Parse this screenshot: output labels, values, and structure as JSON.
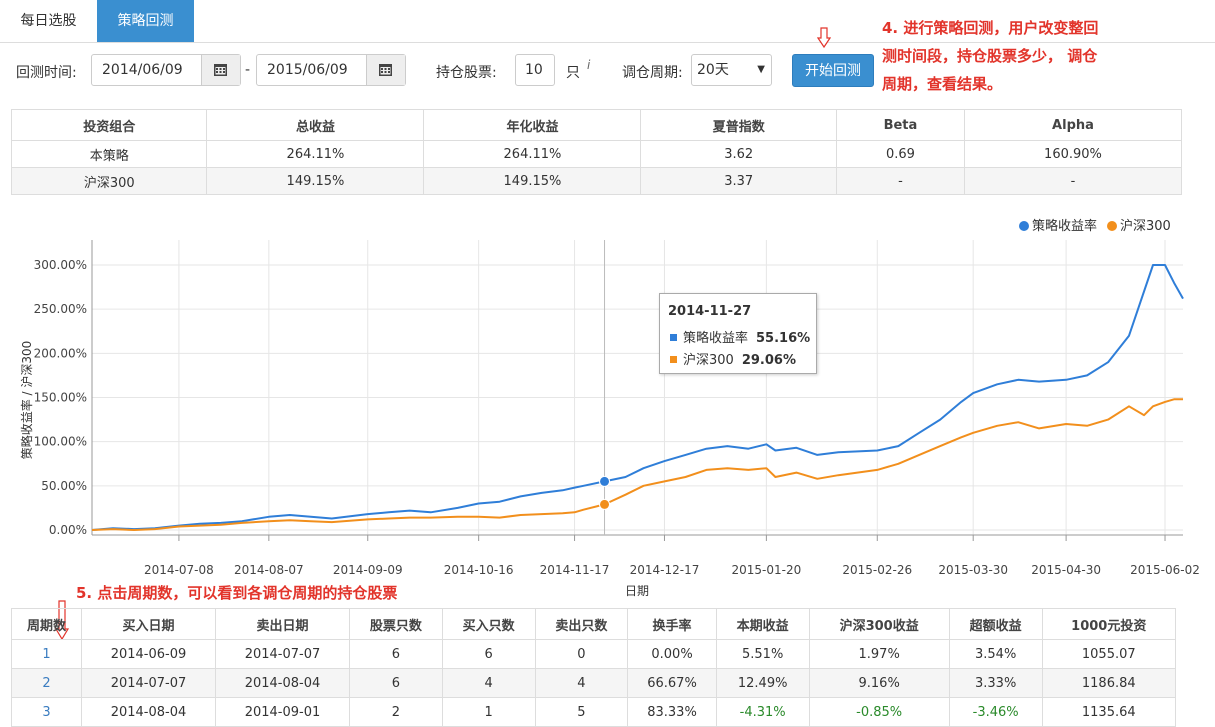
{
  "tabs": [
    {
      "label": "每日选股"
    },
    {
      "label": "策略回测"
    }
  ],
  "controls": {
    "period_label": "回测时间:",
    "start_date": "2014/06/09",
    "date_sep": "-",
    "end_date": "2015/06/09",
    "hold_label": "持仓股票:",
    "hold_count": "10",
    "hold_unit": "只",
    "info_mark": "i",
    "rebalance_label": "调仓周期:",
    "rebalance_value": "20天",
    "start_button": "开始回测"
  },
  "annotations": {
    "step4": [
      "4. 进行策略回测，用户改变整回",
      "测时间段，持仓股票多少， 调仓",
      "周期，查看结果。"
    ],
    "step5": "5. 点击周期数，可以看到各调仓周期的持仓股票"
  },
  "stats_table": {
    "headers": [
      "投资组合",
      "总收益",
      "年化收益",
      "夏普指数",
      "Beta",
      "Alpha"
    ],
    "rows": [
      [
        "本策略",
        "264.11%",
        "264.11%",
        "3.62",
        "0.69",
        "160.90%"
      ],
      [
        "沪深300",
        "149.15%",
        "149.15%",
        "3.37",
        "-",
        "-"
      ]
    ]
  },
  "tooltip": {
    "date": "2014-11-27",
    "rows": [
      {
        "name": "策略收益率",
        "value": "55.16%",
        "color": "#2f7ed8"
      },
      {
        "name": "沪深300",
        "value": "29.06%",
        "color": "#f28f1c"
      }
    ]
  },
  "chart_data": {
    "type": "line",
    "xlabel": "日期",
    "ylabel": "策略收益率 / 沪深300",
    "ylim": [
      -10,
      320
    ],
    "yticks": [
      "0.00%",
      "50.00%",
      "100.00%",
      "150.00%",
      "200.00%",
      "250.00%",
      "300.00%"
    ],
    "xticks": [
      "2014-07-08",
      "2014-08-07",
      "2014-09-09",
      "2014-10-16",
      "2014-11-17",
      "2014-12-17",
      "2015-01-20",
      "2015-02-26",
      "2015-03-30",
      "2015-04-30",
      "2015-06-02"
    ],
    "grid": true,
    "legend_position": "top-right",
    "crosshair_date": "2014-11-27",
    "series": [
      {
        "name": "策略收益率",
        "color": "#2f7ed8",
        "values": [
          [
            "2014-06-09",
            0
          ],
          [
            "2014-06-16",
            2
          ],
          [
            "2014-06-23",
            1
          ],
          [
            "2014-06-30",
            2
          ],
          [
            "2014-07-08",
            5
          ],
          [
            "2014-07-15",
            7
          ],
          [
            "2014-07-22",
            8
          ],
          [
            "2014-07-29",
            10
          ],
          [
            "2014-08-07",
            15
          ],
          [
            "2014-08-14",
            17
          ],
          [
            "2014-08-21",
            15
          ],
          [
            "2014-08-28",
            13
          ],
          [
            "2014-09-09",
            18
          ],
          [
            "2014-09-16",
            20
          ],
          [
            "2014-09-23",
            22
          ],
          [
            "2014-09-30",
            20
          ],
          [
            "2014-10-09",
            25
          ],
          [
            "2014-10-16",
            30
          ],
          [
            "2014-10-23",
            32
          ],
          [
            "2014-10-30",
            38
          ],
          [
            "2014-11-06",
            42
          ],
          [
            "2014-11-13",
            45
          ],
          [
            "2014-11-17",
            48
          ],
          [
            "2014-11-20",
            50
          ],
          [
            "2014-11-27",
            55
          ],
          [
            "2014-12-04",
            60
          ],
          [
            "2014-12-10",
            70
          ],
          [
            "2014-12-17",
            78
          ],
          [
            "2014-12-24",
            85
          ],
          [
            "2014-12-31",
            92
          ],
          [
            "2015-01-07",
            95
          ],
          [
            "2015-01-14",
            92
          ],
          [
            "2015-01-20",
            97
          ],
          [
            "2015-01-23",
            90
          ],
          [
            "2015-01-30",
            93
          ],
          [
            "2015-02-06",
            85
          ],
          [
            "2015-02-13",
            88
          ],
          [
            "2015-02-26",
            90
          ],
          [
            "2015-03-05",
            95
          ],
          [
            "2015-03-12",
            110
          ],
          [
            "2015-03-19",
            125
          ],
          [
            "2015-03-26",
            145
          ],
          [
            "2015-03-30",
            155
          ],
          [
            "2015-04-07",
            165
          ],
          [
            "2015-04-14",
            170
          ],
          [
            "2015-04-21",
            168
          ],
          [
            "2015-04-30",
            170
          ],
          [
            "2015-05-07",
            175
          ],
          [
            "2015-05-14",
            190
          ],
          [
            "2015-05-21",
            220
          ],
          [
            "2015-05-26",
            270
          ],
          [
            "2015-05-29",
            300
          ],
          [
            "2015-06-02",
            300
          ],
          [
            "2015-06-05",
            280
          ],
          [
            "2015-06-08",
            262
          ]
        ]
      },
      {
        "name": "沪深300",
        "color": "#f28f1c",
        "values": [
          [
            "2014-06-09",
            0
          ],
          [
            "2014-06-16",
            1
          ],
          [
            "2014-06-23",
            0
          ],
          [
            "2014-06-30",
            1
          ],
          [
            "2014-07-08",
            4
          ],
          [
            "2014-07-15",
            5
          ],
          [
            "2014-07-22",
            6
          ],
          [
            "2014-07-29",
            8
          ],
          [
            "2014-08-07",
            10
          ],
          [
            "2014-08-14",
            11
          ],
          [
            "2014-08-21",
            10
          ],
          [
            "2014-08-28",
            9
          ],
          [
            "2014-09-09",
            12
          ],
          [
            "2014-09-16",
            13
          ],
          [
            "2014-09-23",
            14
          ],
          [
            "2014-09-30",
            14
          ],
          [
            "2014-10-09",
            15
          ],
          [
            "2014-10-16",
            15
          ],
          [
            "2014-10-23",
            14
          ],
          [
            "2014-10-30",
            17
          ],
          [
            "2014-11-06",
            18
          ],
          [
            "2014-11-13",
            19
          ],
          [
            "2014-11-17",
            20
          ],
          [
            "2014-11-20",
            23
          ],
          [
            "2014-11-27",
            29
          ],
          [
            "2014-12-04",
            40
          ],
          [
            "2014-12-10",
            50
          ],
          [
            "2014-12-17",
            55
          ],
          [
            "2014-12-24",
            60
          ],
          [
            "2014-12-31",
            68
          ],
          [
            "2015-01-07",
            70
          ],
          [
            "2015-01-14",
            68
          ],
          [
            "2015-01-20",
            70
          ],
          [
            "2015-01-23",
            60
          ],
          [
            "2015-01-30",
            65
          ],
          [
            "2015-02-06",
            58
          ],
          [
            "2015-02-13",
            62
          ],
          [
            "2015-02-26",
            68
          ],
          [
            "2015-03-05",
            75
          ],
          [
            "2015-03-12",
            85
          ],
          [
            "2015-03-19",
            95
          ],
          [
            "2015-03-26",
            105
          ],
          [
            "2015-03-30",
            110
          ],
          [
            "2015-04-07",
            118
          ],
          [
            "2015-04-14",
            122
          ],
          [
            "2015-04-21",
            115
          ],
          [
            "2015-04-30",
            120
          ],
          [
            "2015-05-07",
            118
          ],
          [
            "2015-05-14",
            125
          ],
          [
            "2015-05-21",
            140
          ],
          [
            "2015-05-26",
            130
          ],
          [
            "2015-05-29",
            140
          ],
          [
            "2015-06-02",
            145
          ],
          [
            "2015-06-05",
            148
          ],
          [
            "2015-06-08",
            148
          ]
        ]
      }
    ]
  },
  "period_table": {
    "headers": [
      "周期数",
      "买入日期",
      "卖出日期",
      "股票只数",
      "买入只数",
      "卖出只数",
      "换手率",
      "本期收益",
      "沪深300收益",
      "超额收益",
      "1000元投资"
    ],
    "rows": [
      [
        "1",
        "2014-06-09",
        "2014-07-07",
        "6",
        "6",
        "0",
        "0.00%",
        "5.51%",
        "1.97%",
        "3.54%",
        "1055.07"
      ],
      [
        "2",
        "2014-07-07",
        "2014-08-04",
        "6",
        "4",
        "4",
        "66.67%",
        "12.49%",
        "9.16%",
        "3.33%",
        "1186.84"
      ],
      [
        "3",
        "2014-08-04",
        "2014-09-01",
        "2",
        "1",
        "5",
        "83.33%",
        "-4.31%",
        "-0.85%",
        "-3.46%",
        "1135.64"
      ]
    ]
  }
}
